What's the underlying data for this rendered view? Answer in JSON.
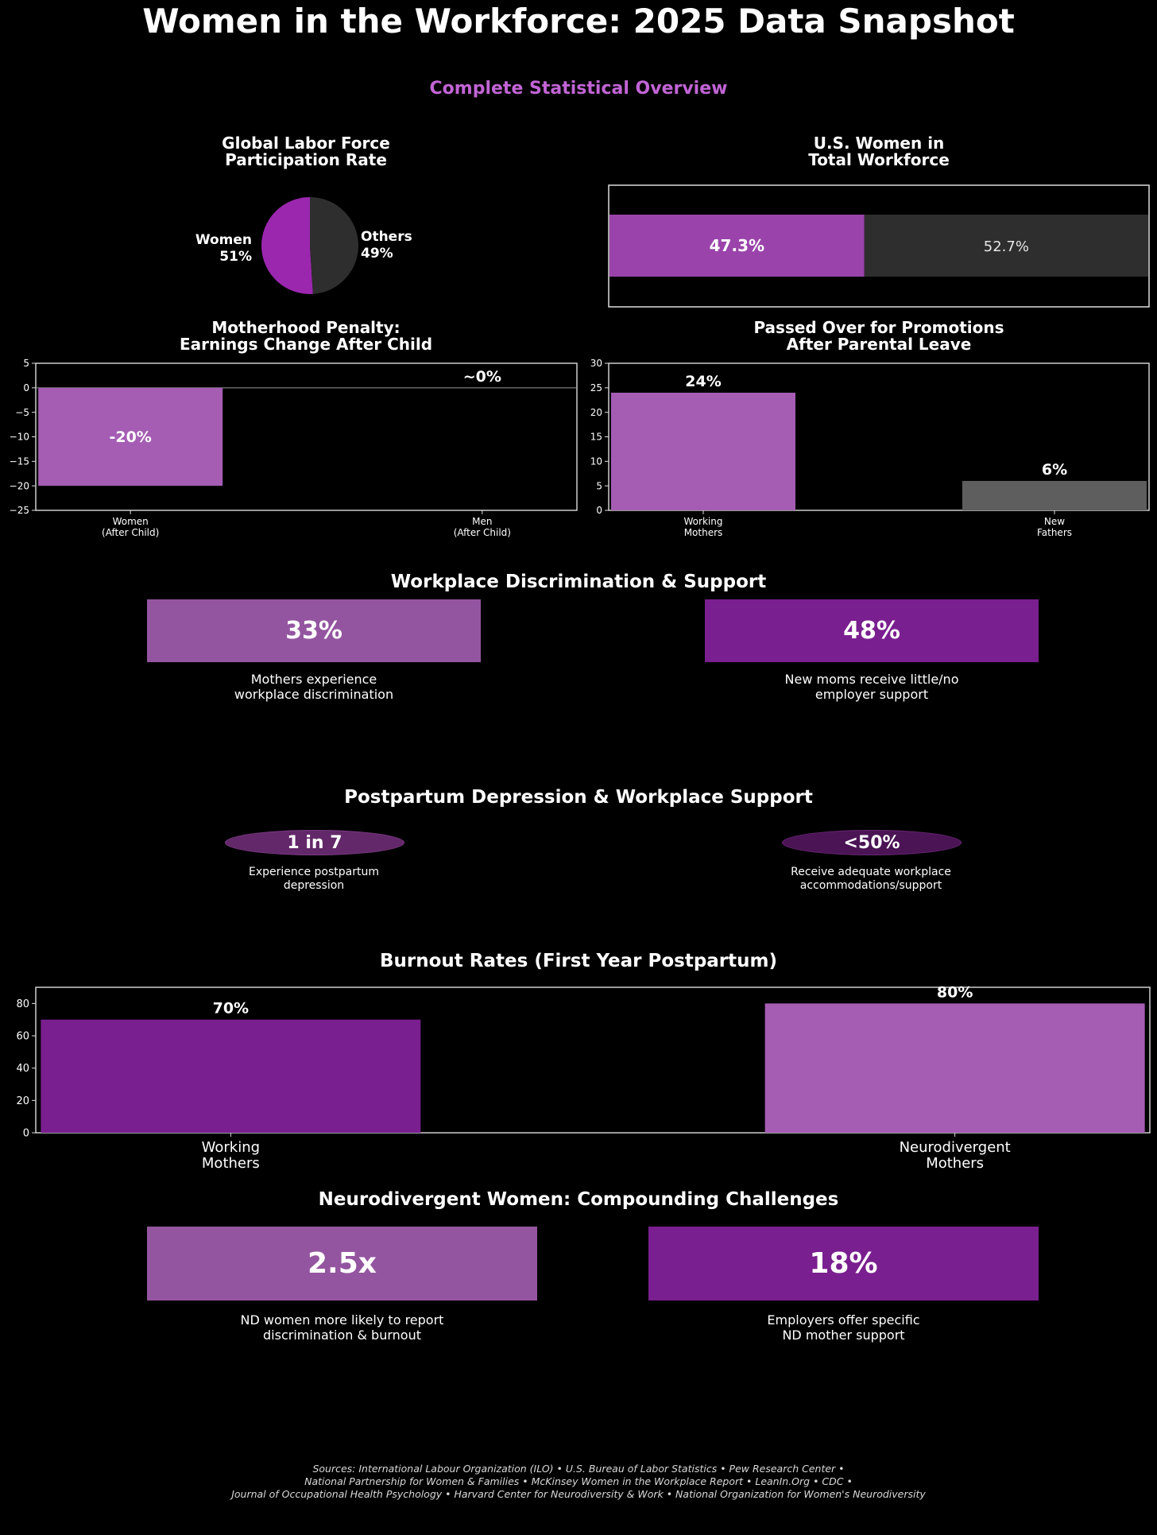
{
  "title": "Women in the Workforce: 2025 Data Snapshot",
  "subtitle": "Complete Statistical Overview",
  "colors": {
    "purple": "#9b27af",
    "light_purple": "#a55db4",
    "medium_purple": "#9455a0",
    "dark_purple": "#7a1f8f",
    "gray": "#2e2e2e",
    "mid_gray": "#5e5e5e"
  },
  "sections": {
    "discrimination": "Workplace Discrimination & Support",
    "postpartum": "Postpartum Depression & Workplace Support",
    "burnout": "Burnout Rates (First Year Postpartum)",
    "neurodivergent": "Neurodivergent Women: Compounding Challenges"
  },
  "chart_data": [
    {
      "type": "pie",
      "title_line1": "Global Labor Force",
      "title_line2": "Participation Rate",
      "slices": [
        {
          "name": "Women",
          "value": 51,
          "label": "51%"
        },
        {
          "name": "Others",
          "value": 49,
          "label": "49%"
        }
      ]
    },
    {
      "type": "bar",
      "orientation": "horizontal-stacked",
      "title_line1": "U.S. Women in",
      "title_line2": "Total Workforce",
      "segments": [
        {
          "name": "Women",
          "value": 47.3,
          "label": "47.3%"
        },
        {
          "name": "Others",
          "value": 52.7,
          "label": "52.7%"
        }
      ]
    },
    {
      "type": "bar",
      "title_line1": "Motherhood Penalty:",
      "title_line2": "Earnings Change After Child",
      "categories": [
        "Women\n(After Child)",
        "Men\n(After Child)"
      ],
      "values": [
        -20,
        0
      ],
      "labels": [
        "-20%",
        "~0%"
      ],
      "ylim": [
        -25,
        5
      ],
      "yticks": [
        5,
        0,
        -5,
        -10,
        -15,
        -20,
        -25
      ],
      "ytick_labels": [
        "5",
        "0",
        "−5",
        "−10",
        "−15",
        "−20",
        "−25"
      ]
    },
    {
      "type": "bar",
      "title_line1": "Passed Over for Promotions",
      "title_line2": "After Parental Leave",
      "categories": [
        "Working\nMothers",
        "New\nFathers"
      ],
      "values": [
        24,
        6
      ],
      "labels": [
        "24%",
        "6%"
      ],
      "ylim": [
        0,
        30
      ],
      "yticks": [
        0,
        5,
        10,
        15,
        20,
        25,
        30
      ]
    },
    {
      "type": "bar",
      "title": "Burnout Rates (First Year Postpartum)",
      "categories": [
        "Working\nMothers",
        "Neurodivergent\nMothers"
      ],
      "values": [
        70,
        80
      ],
      "labels": [
        "70%",
        "80%"
      ],
      "ylim": [
        0,
        90
      ],
      "yticks": [
        0,
        20,
        40,
        60,
        80
      ]
    }
  ],
  "discrimination_stats": [
    {
      "value": "33%",
      "desc": "Mothers experience\nworkplace discrimination"
    },
    {
      "value": "48%",
      "desc": "New moms receive little/no\nemployer support"
    }
  ],
  "postpartum_stats": [
    {
      "value": "1 in 7",
      "desc": "Experience postpartum\ndepression"
    },
    {
      "value": "<50%",
      "desc": "Receive adequate workplace\naccommodations/support"
    }
  ],
  "nd_stats": [
    {
      "value": "2.5x",
      "desc": "ND women more likely to report\ndiscrimination & burnout"
    },
    {
      "value": "18%",
      "desc": "Employers offer specific\nND mother support"
    }
  ],
  "sources": {
    "line1": "Sources: International Labour Organization (ILO) • U.S. Bureau of Labor Statistics • Pew Research Center •",
    "line2": "National Partnership for Women & Families • McKinsey Women in the Workplace Report • LeanIn.Org • CDC •",
    "line3": "Journal of Occupational Health Psychology • Harvard Center for Neurodiversity & Work • National Organization for Women's Neurodiversity"
  }
}
